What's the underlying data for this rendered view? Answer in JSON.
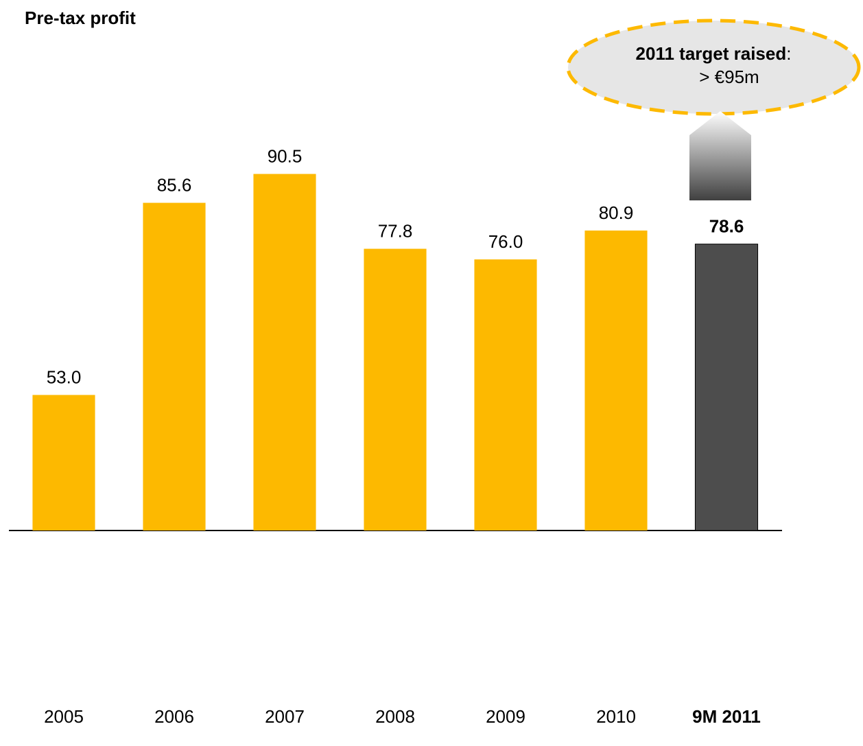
{
  "chart_data": {
    "type": "bar",
    "title": "Pre-tax profit",
    "categories": [
      "2005",
      "2006",
      "2007",
      "2008",
      "2009",
      "2010",
      "9M 2011"
    ],
    "values": [
      53.0,
      85.6,
      90.5,
      77.8,
      76.0,
      80.9,
      78.6
    ],
    "value_labels": [
      "53.0",
      "85.6",
      "90.5",
      "77.8",
      "76.0",
      "80.9",
      "78.6"
    ],
    "colors": [
      "#FDB900",
      "#FDB900",
      "#FDB900",
      "#FDB900",
      "#FDB900",
      "#FDB900",
      "#4D4D4D"
    ],
    "ylim": [
      30,
      110
    ],
    "annotation": {
      "bold": "2011 target raised",
      "rest": ":",
      "line2": "> €95m"
    }
  }
}
